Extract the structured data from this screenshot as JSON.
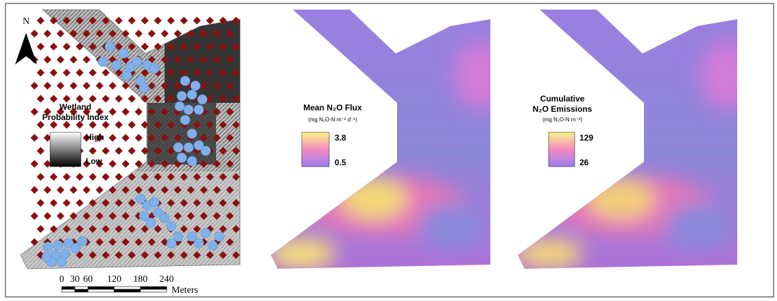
{
  "north": "N",
  "panels": [
    {
      "legend": {
        "title_lines": [
          "Wetland",
          "Probability Index"
        ],
        "top": "High",
        "bottom": "Low"
      }
    },
    {
      "legend": {
        "title_lines": [
          "Mean N₂O Flux"
        ],
        "units": "(mg N₂O-N m⁻² d⁻¹)",
        "top": 3.8,
        "bottom": 0.5
      }
    },
    {
      "legend": {
        "title_lines": [
          "Cumulative",
          "N₂O Emissions"
        ],
        "units": "(mg N₂O-N m⁻²)",
        "top": 129,
        "bottom": 26
      }
    }
  ],
  "scale_bar": {
    "ticks": [
      0,
      30,
      60,
      120,
      180,
      240
    ],
    "unit": "Meters"
  }
}
